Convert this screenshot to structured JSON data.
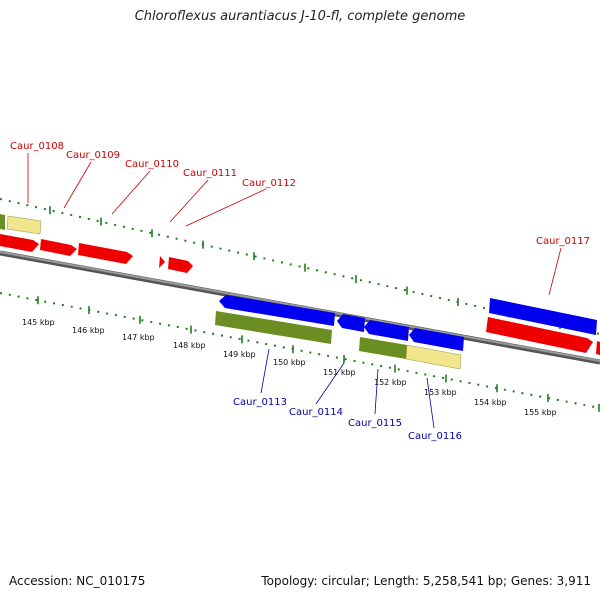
{
  "title": "Chloroflexus aurantiacus J-10-fl, complete genome",
  "footer": {
    "accession": "Accession: NC_010175",
    "topology": "Topology: circular; Length: 5,258,541 bp; Genes: 3,911"
  },
  "colors": {
    "forward_label": "#cc0000",
    "reverse_label": "#0000aa",
    "tick": "#1e7d1e",
    "backbone": "#777777",
    "cds_forward": "#ee0000",
    "cds_reverse": "#0000ee",
    "rna_olive": "#6b8e23",
    "rna_pale": "#f0e68c"
  },
  "scale_labels": [
    "145 kbp",
    "146 kbp",
    "147 kbp",
    "148 kbp",
    "149 kbp",
    "150 kbp",
    "151 kbp",
    "152 kbp",
    "153 kbp",
    "154 kbp",
    "155 kbp"
  ],
  "forward_genes": [
    "Caur_0108",
    "Caur_0109",
    "Caur_0110",
    "Caur_0111",
    "Caur_0112",
    "Caur_0117"
  ],
  "reverse_genes": [
    "Caur_0113",
    "Caur_0114",
    "Caur_0115",
    "Caur_0116"
  ]
}
